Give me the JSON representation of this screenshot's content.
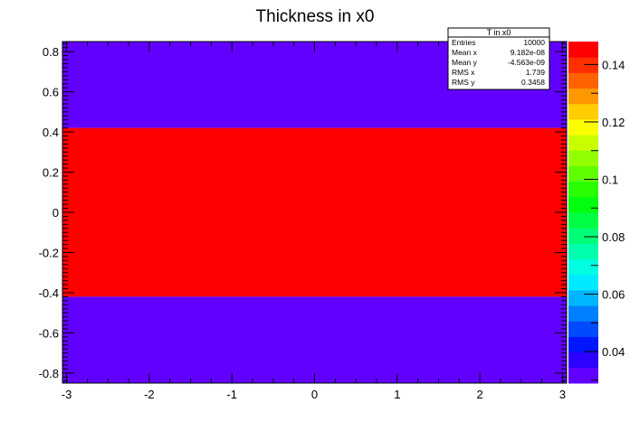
{
  "chart_data": {
    "type": "heatmap",
    "title": "Thickness in x0",
    "xlabel": "",
    "ylabel": "",
    "xlim": [
      -3.05,
      3.05
    ],
    "ylim": [
      -0.85,
      0.85
    ],
    "x_ticks": [
      "-3",
      "-2",
      "-1",
      "0",
      "1",
      "2",
      "3"
    ],
    "y_ticks": [
      "-0.8",
      "-0.6",
      "-0.4",
      "-0.2",
      "0",
      "0.2",
      "0.4",
      "0.6",
      "0.8"
    ],
    "cells": [
      {
        "x": [
          -3.05,
          3.05
        ],
        "y": [
          0.42,
          0.85
        ],
        "value": 0.03
      },
      {
        "x": [
          -3.05,
          3.05
        ],
        "y": [
          -0.42,
          0.42
        ],
        "value": 0.15
      },
      {
        "x": [
          -3.05,
          3.05
        ],
        "y": [
          -0.85,
          -0.42
        ],
        "value": 0.03
      }
    ],
    "colorbar": {
      "range": [
        0.029,
        0.148
      ],
      "ticks": [
        "0.04",
        "0.06",
        "0.08",
        "0.1",
        "0.12",
        "0.14"
      ],
      "colors": [
        "#6100ff",
        "#2e00ff",
        "#0016ff",
        "#004bff",
        "#0080ff",
        "#00b5ff",
        "#00e9ff",
        "#00ffe0",
        "#00ffac",
        "#00ff77",
        "#00ff42",
        "#00ff0e",
        "#29ff00",
        "#5eff00",
        "#93ff00",
        "#c7ff00",
        "#fcff00",
        "#ffcd00",
        "#ff9800",
        "#ff6300",
        "#ff2f00",
        "#ff0000"
      ]
    },
    "stats": {
      "title": "T in x0",
      "rows": [
        {
          "label": "Entries",
          "value": "10000"
        },
        {
          "label": "Mean x",
          "value": "9.182e-08"
        },
        {
          "label": "Mean y",
          "value": "-4.563e-09"
        },
        {
          "label": "RMS x",
          "value": "1.739"
        },
        {
          "label": "RMS y",
          "value": "0.3458"
        }
      ]
    }
  }
}
